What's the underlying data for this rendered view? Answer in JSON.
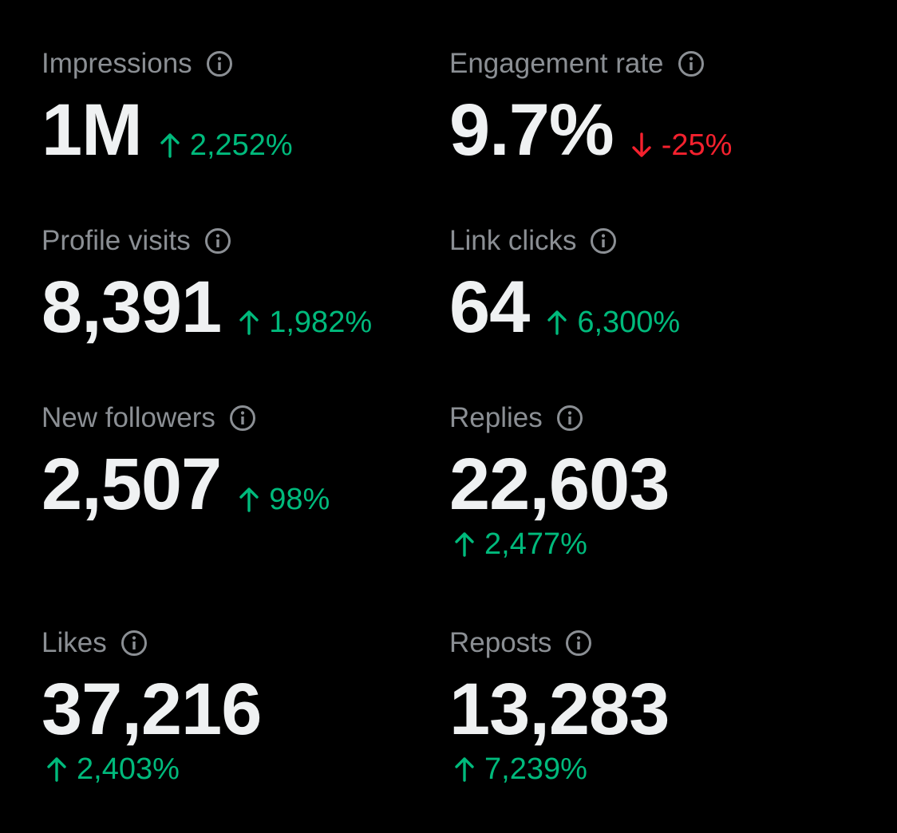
{
  "metrics": {
    "impressions": {
      "label": "Impressions",
      "value": "1M",
      "change": "2,252%",
      "direction": "up"
    },
    "engagement_rate": {
      "label": "Engagement rate",
      "value": "9.7%",
      "change": "-25%",
      "direction": "down"
    },
    "profile_visits": {
      "label": "Profile visits",
      "value": "8,391",
      "change": "1,982%",
      "direction": "up"
    },
    "link_clicks": {
      "label": "Link clicks",
      "value": "64",
      "change": "6,300%",
      "direction": "up"
    },
    "new_followers": {
      "label": "New followers",
      "value": "2,507",
      "change": "98%",
      "direction": "up"
    },
    "replies": {
      "label": "Replies",
      "value": "22,603",
      "change": "2,477%",
      "direction": "up"
    },
    "likes": {
      "label": "Likes",
      "value": "37,216",
      "change": "2,403%",
      "direction": "up"
    },
    "reposts": {
      "label": "Reposts",
      "value": "13,283",
      "change": "7,239%",
      "direction": "up"
    }
  },
  "colors": {
    "background": "#000000",
    "label": "#8b8f94",
    "value": "#eff1f2",
    "positive": "#00ba7c",
    "negative": "#f4212e"
  },
  "icons": {
    "info": "info-circle-icon",
    "up": "arrow-up-icon",
    "down": "arrow-down-icon"
  }
}
